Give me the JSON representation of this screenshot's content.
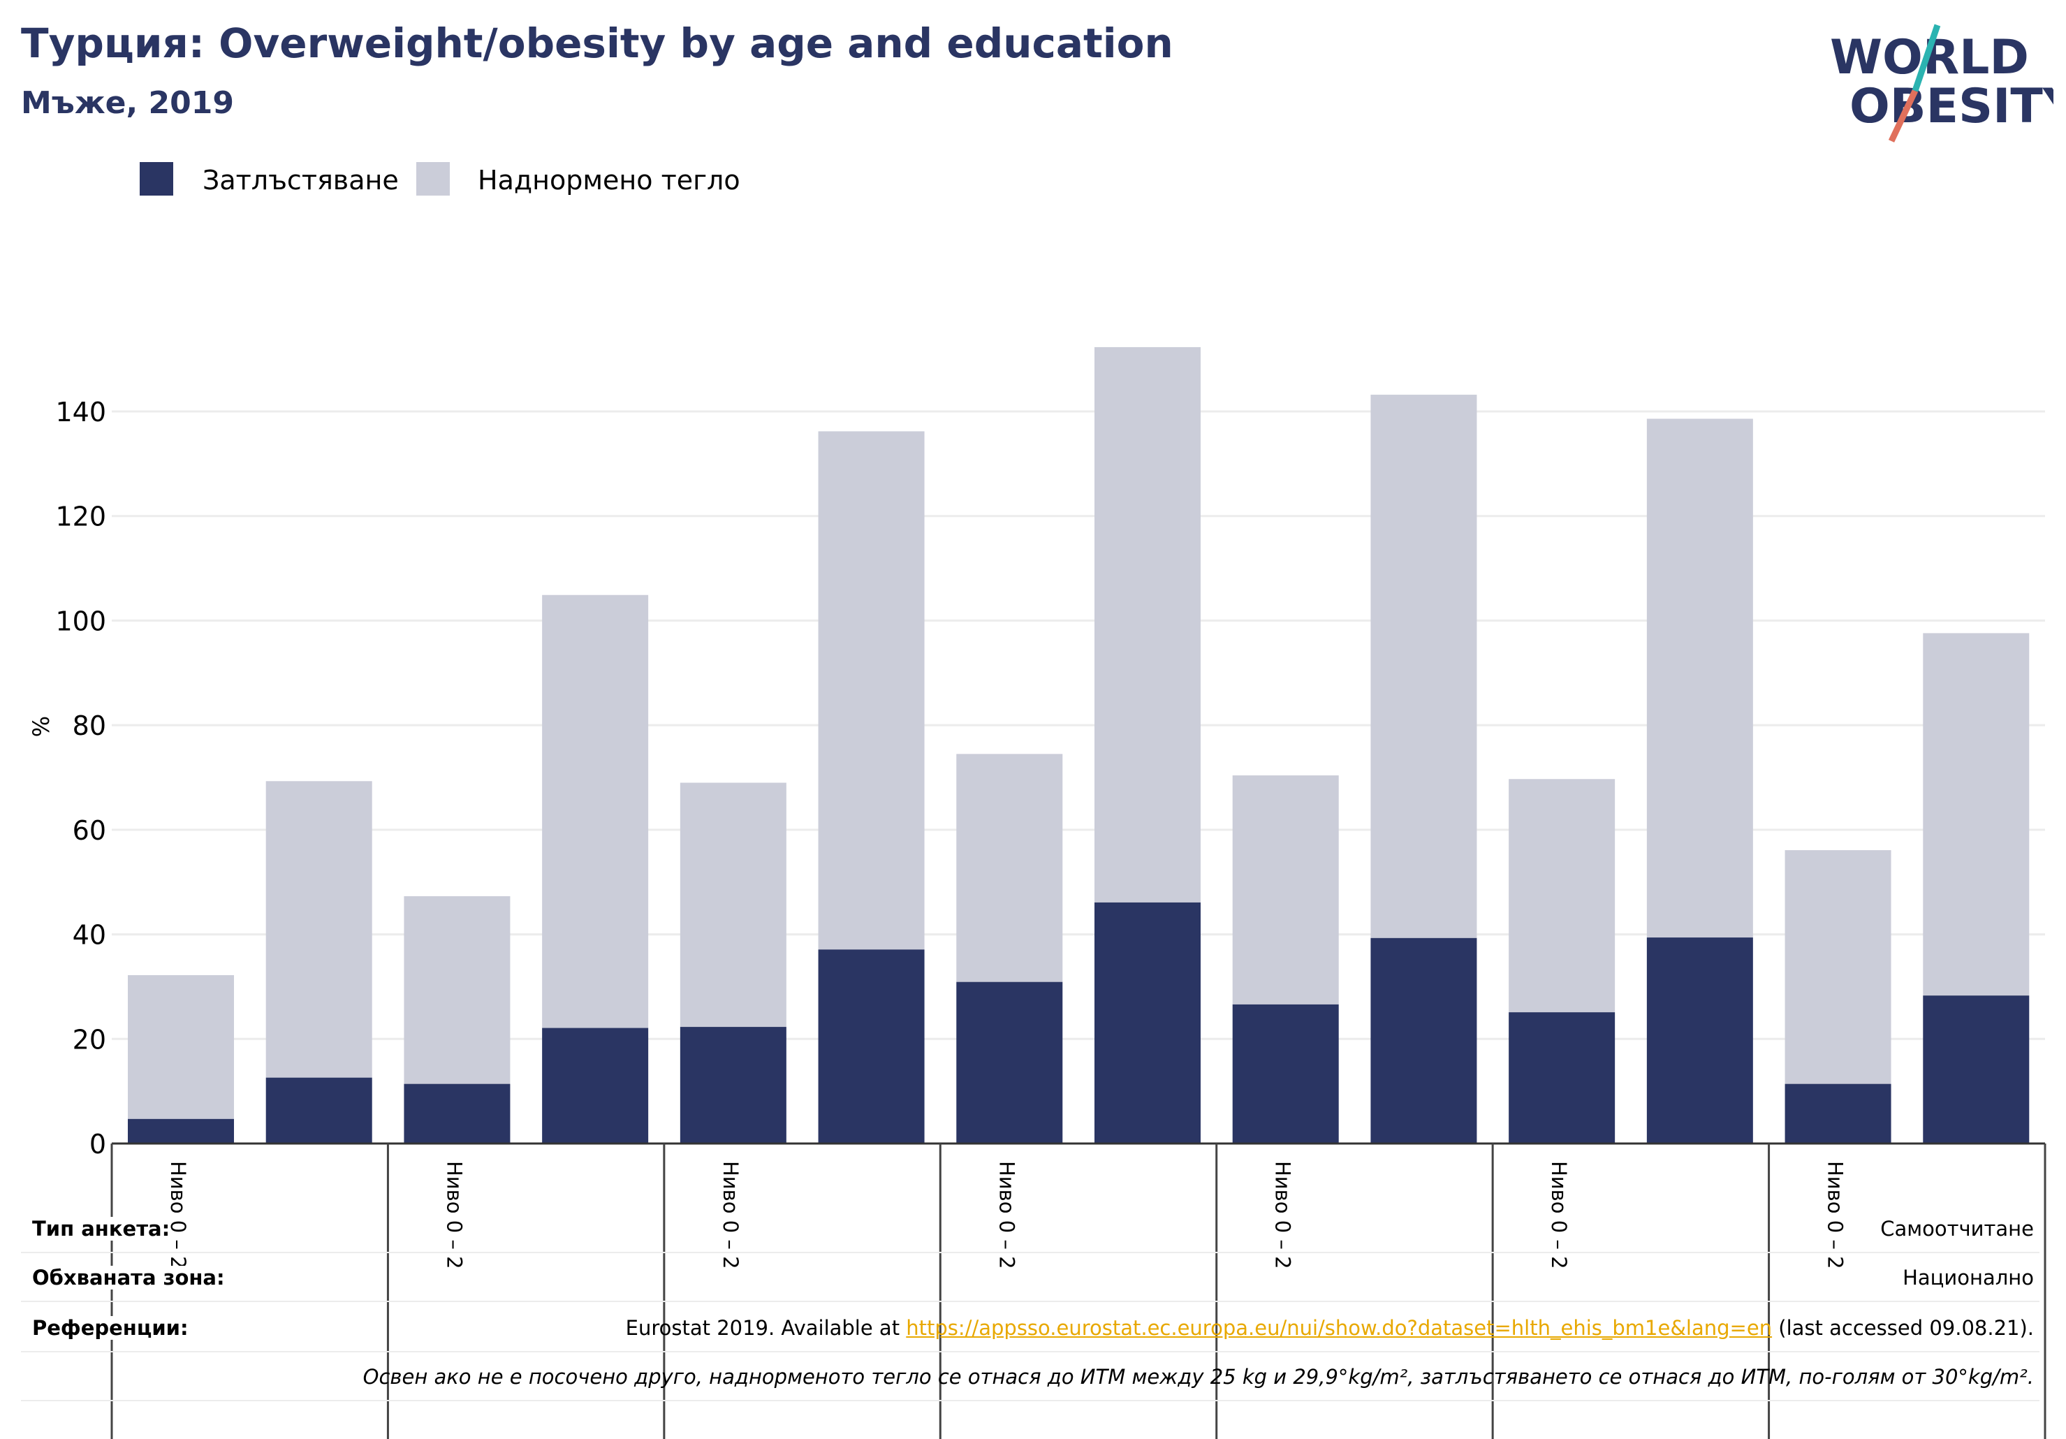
{
  "header": {
    "title": "Турция: Overweight/obesity by age and education",
    "subtitle": "Мъже, 2019"
  },
  "logo": {
    "line1": "WORLD",
    "line2": "OBESITY"
  },
  "legend": {
    "obesity_label": "Затлъстяване",
    "overweight_label": "Наднормено тегло"
  },
  "colors": {
    "obesity": "#2a3563",
    "overweight": "#cbcdd9",
    "link": "#e8a800",
    "title": "#2a3563"
  },
  "chart_data": {
    "type": "bar",
    "stacked": true,
    "ylabel": "%",
    "ylim": [
      0,
      160
    ],
    "yticks": [
      0,
      20,
      40,
      60,
      80,
      100,
      120,
      140
    ],
    "grid": true,
    "legend_position": "top-left",
    "categories": [
      "Ниво 0 – 2",
      "",
      "Ниво 0 – 2",
      "",
      "Ниво 0 – 2",
      "",
      "Ниво 0 – 2",
      "",
      "Ниво 0 – 2",
      "",
      "Ниво 0 – 2",
      "",
      "Ниво 0 – 2",
      ""
    ],
    "series": [
      {
        "name": "Затлъстяване",
        "values": [
          4.7,
          12.6,
          11.4,
          22.1,
          22.3,
          37.1,
          30.9,
          46.1,
          26.6,
          39.3,
          25.1,
          39.4,
          11.4,
          28.3
        ]
      },
      {
        "name": "Наднормено тегло",
        "values": [
          27.5,
          56.7,
          35.9,
          82.8,
          46.7,
          99.1,
          43.6,
          106.2,
          43.8,
          103.9,
          44.6,
          99.2,
          44.7,
          69.3
        ]
      }
    ]
  },
  "meta": {
    "survey_type_label": "Тип анкета:",
    "survey_type_value": "Самоотчитане",
    "coverage_label": "Обхваната зона:",
    "coverage_value": "Национално",
    "references_label": "Референции:",
    "references_prefix": "Eurostat 2019. Available at ",
    "references_link": "https://appsso.eurostat.ec.europa.eu/nui/show.do?dataset=hlth_ehis_bm1e&lang=en",
    "references_suffix": " (last accessed 09.08.21).",
    "note": "Освен ако не е посочено друго, наднорменото тегло се отнася до ИТМ между 25 kg и 29,9°kg/m², затлъстяването се отнася до ИТМ, по-голям от 30°kg/m²."
  }
}
